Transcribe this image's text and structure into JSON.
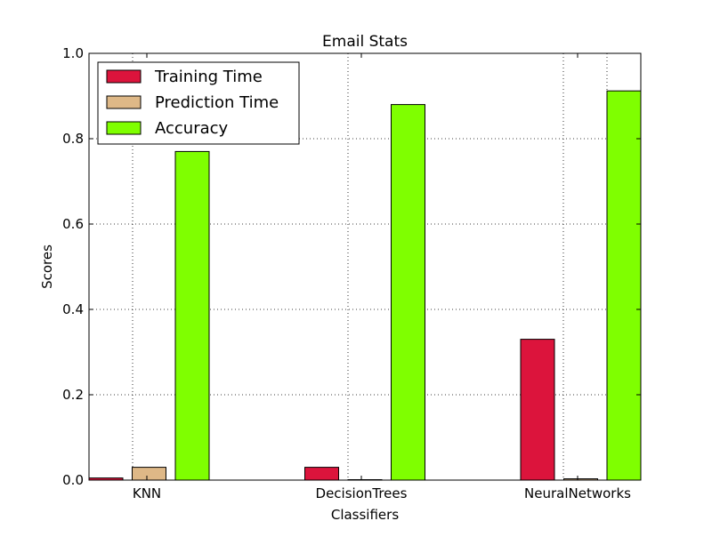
{
  "chart_data": {
    "type": "bar",
    "title": "Email Stats",
    "xlabel": "Classifiers",
    "ylabel": "Scores",
    "categories": [
      "KNN",
      "DecisionTrees",
      "NeuralNetworks"
    ],
    "ylim": [
      0,
      1.0
    ],
    "yticks": [
      "0.0",
      "0.2",
      "0.4",
      "0.6",
      "0.8",
      "1.0"
    ],
    "grid": true,
    "legend_position": "top-left",
    "series": [
      {
        "name": "Training Time",
        "color": "#dc143c",
        "values": [
          0.005,
          0.03,
          0.33
        ]
      },
      {
        "name": "Prediction Time",
        "color": "#deb887",
        "values": [
          0.03,
          0.001,
          0.003
        ]
      },
      {
        "name": "Accuracy",
        "color": "#7fff00",
        "values": [
          0.77,
          0.88,
          0.912
        ]
      }
    ]
  }
}
